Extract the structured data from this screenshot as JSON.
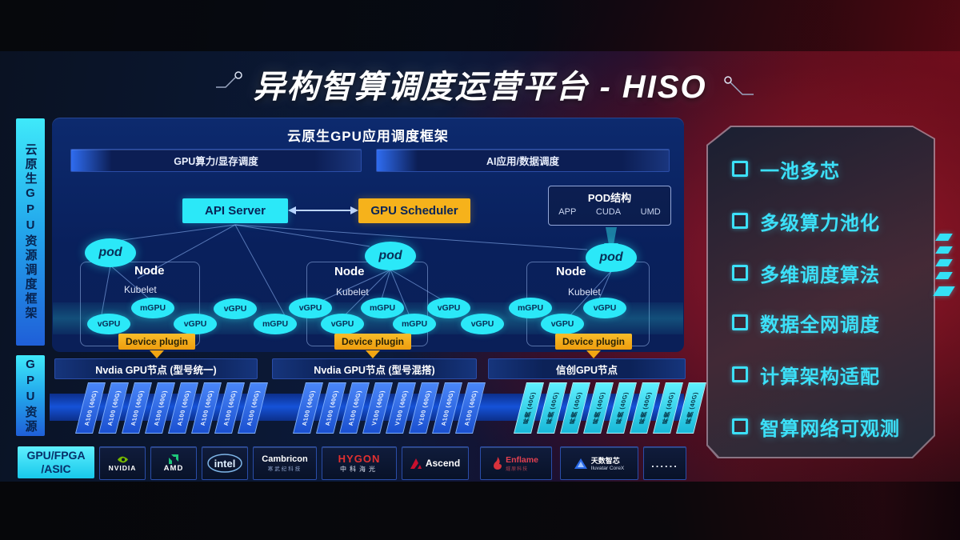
{
  "title": "异构智算调度运营平台 - HISO",
  "sidebar": {
    "top_label": "云原生GPU资源调度框架",
    "bottom_label": "GPU资源"
  },
  "framework": {
    "header": "云原生GPU应用调度框架",
    "left_bar": "GPU算力/显存调度",
    "right_bar": "AI应用/数据调度"
  },
  "scheduler": {
    "api_server": "API Server",
    "gpu_scheduler": "GPU Scheduler"
  },
  "pod_struct": {
    "title": "POD结构",
    "items": [
      "APP",
      "CUDA",
      "UMD"
    ]
  },
  "nodes": [
    {
      "pod": "pod",
      "name": "Node",
      "agent": "Kubelet",
      "plugin": "Device plugin"
    },
    {
      "pod": "pod",
      "name": "Node",
      "agent": "Kubelet",
      "plugin": "Device plugin"
    },
    {
      "pod": "pod",
      "name": "Node",
      "agent": "Kubelet",
      "plugin": "Device plugin"
    }
  ],
  "gpu_units": [
    "vGPU",
    "mGPU",
    "vGPU",
    "vGPU",
    "mGPU",
    "vGPU",
    "vGPU",
    "mGPU",
    "mGPU",
    "vGPU",
    "vGPU",
    "mGPU",
    "vGPU",
    "vGPU"
  ],
  "gpu_groups": [
    {
      "header": "Nvdia GPU节点 (型号统一)",
      "cards": [
        "A100 (40G)",
        "A100 (40G)",
        "A100 (40G)",
        "A100 (40G)",
        "A100 (40G)",
        "A100 (40G)",
        "A100 (40G)",
        "A100 (40G)"
      ]
    },
    {
      "header": "Nvdia GPU节点 (型号混搭)",
      "cards": [
        "A100 (40G)",
        "A100 (40G)",
        "A100 (40G)",
        "V100 (40G)",
        "V100 (40G)",
        "V100 (40G)",
        "A100 (40G)",
        "A100 (40G)"
      ]
    },
    {
      "header": "信创GPU节点",
      "cards": [
        "昇腾 (40G)",
        "昇腾 (40G)",
        "昇腾 (40G)",
        "昇腾 (40G)",
        "昇腾 (40G)",
        "昇腾 (40G)",
        "昇腾 (40G)",
        "昇腾 (40G)"
      ]
    }
  ],
  "vendors": {
    "asic_line1": "GPU/FPGA",
    "asic_line2": "/ASIC",
    "nvidia": "NVIDIA",
    "amd": "AMD",
    "intel": "intel",
    "cambricon": "Cambricon",
    "cambricon_sub": "寒武纪科技",
    "hygon": "HYGON",
    "hygon_sub": "中科海光",
    "ascend": "Ascend",
    "enflame": "Enflame",
    "enflame_sub": "燧原科技",
    "iluvatar": "天数智芯",
    "iluvatar_sub": "Iluvatar CoreX",
    "more": "......"
  },
  "features": [
    "一池多芯",
    "多级算力池化",
    "多维调度算法",
    "数据全网调度",
    "计算架构适配",
    "智算网络可观测"
  ],
  "colors": {
    "cyan": "#2BE8F8",
    "orange": "#F6B21B",
    "feature_cyan": "#3CE0F8",
    "card_blue": "#2F6CF0",
    "band_blue": "#1552D8"
  }
}
